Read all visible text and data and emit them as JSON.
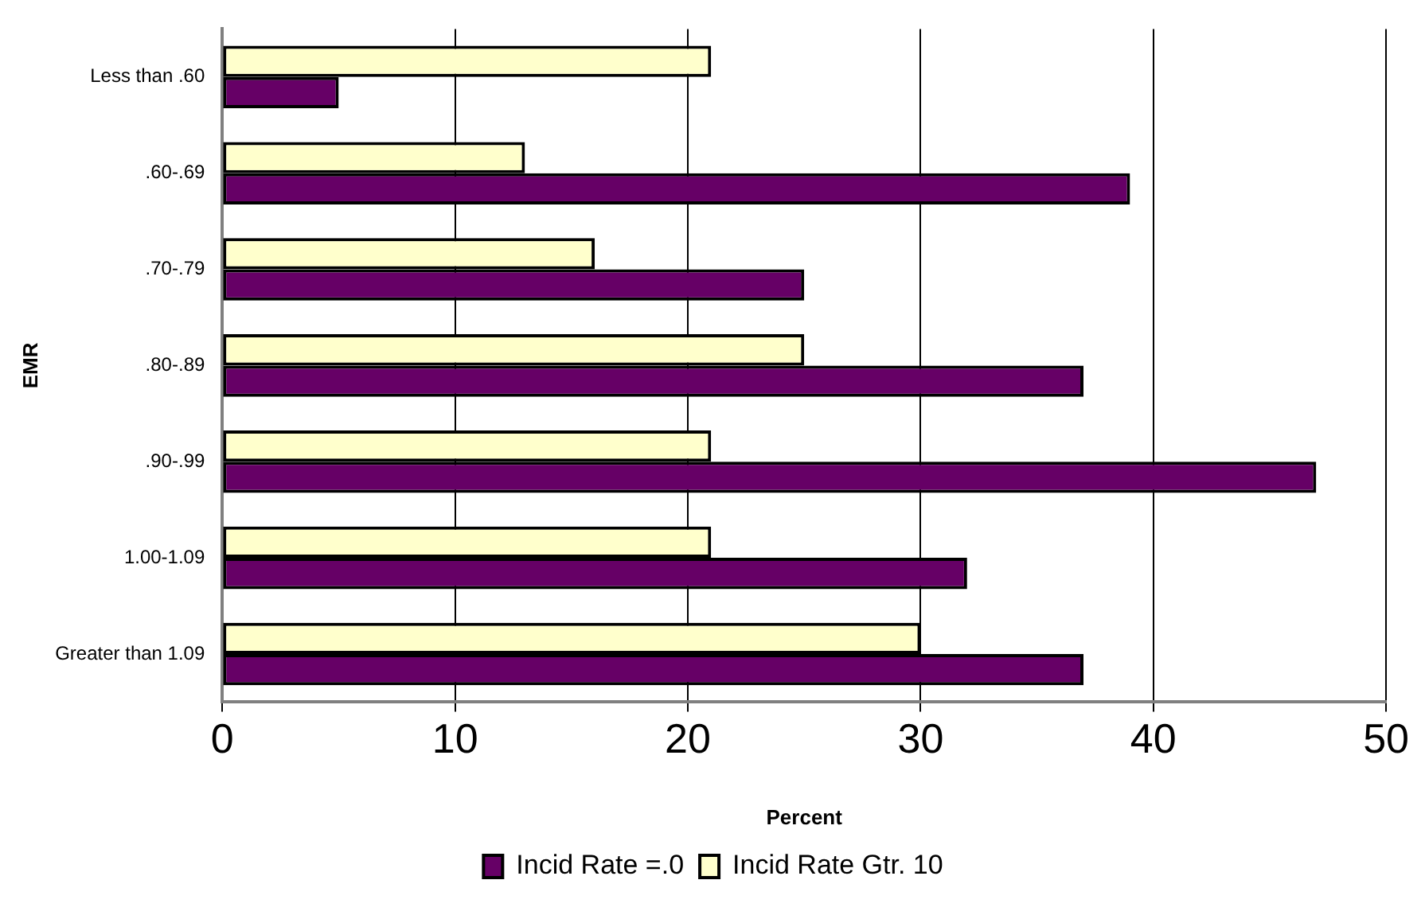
{
  "chart_data": {
    "type": "bar",
    "orientation": "horizontal",
    "xlabel": "Percent",
    "ylabel": "EMR",
    "categories": [
      "Less than .60",
      ".60-.69",
      ".70-.79",
      ".80-.89",
      ".90-.99",
      "1.00-1.09",
      "Greater than 1.09"
    ],
    "series": [
      {
        "name": "Incid Rate =.0",
        "color": "#660066",
        "values": [
          5,
          39,
          25,
          37,
          47,
          32,
          37
        ]
      },
      {
        "name": "Incid Rate Gtr. 10",
        "color": "#ffffcc",
        "values": [
          21,
          13,
          16,
          25,
          21,
          21,
          30
        ]
      }
    ],
    "xlim": [
      0,
      50
    ],
    "xticks": [
      0,
      10,
      20,
      30,
      40,
      50
    ],
    "grid": "x",
    "legend": "bottom"
  }
}
